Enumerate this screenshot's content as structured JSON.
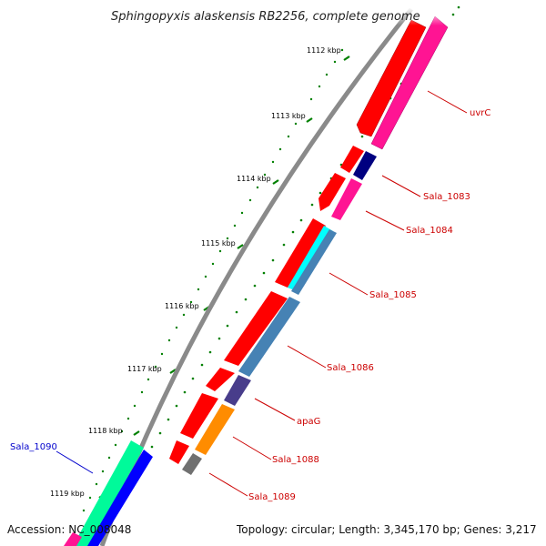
{
  "title": "Sphingopyxis alaskensis RB2256, complete genome",
  "footer": {
    "accession": "Accession: NC_008048",
    "summary": "Topology: circular; Length: 3,345,170 bp; Genes: 3,217"
  },
  "kbp_labels": [
    "1112 kbp",
    "1113 kbp",
    "1114 kbp",
    "1115 kbp",
    "1116 kbp",
    "1117 kbp",
    "1118 kbp",
    "1119 kbp"
  ],
  "gene_labels": {
    "uvrC": "uvrC",
    "sala_1083": "Sala_1083",
    "sala_1084": "Sala_1084",
    "sala_1085": "Sala_1085",
    "sala_1086": "Sala_1086",
    "apaG": "apaG",
    "sala_1088": "Sala_1088",
    "sala_1089": "Sala_1089",
    "sala_1090": "Sala_1090"
  },
  "colors": {
    "red_track": "#ff0000",
    "pink": "#ff1493",
    "navy": "#000080",
    "cyan": "#00ffff",
    "steelblue": "#4682b4",
    "slateblue": "#483d8b",
    "orange": "#ff8c00",
    "gray": "#808080",
    "green": "#00fa9a",
    "blue": "#0000ff",
    "tick_green": "#008000"
  }
}
